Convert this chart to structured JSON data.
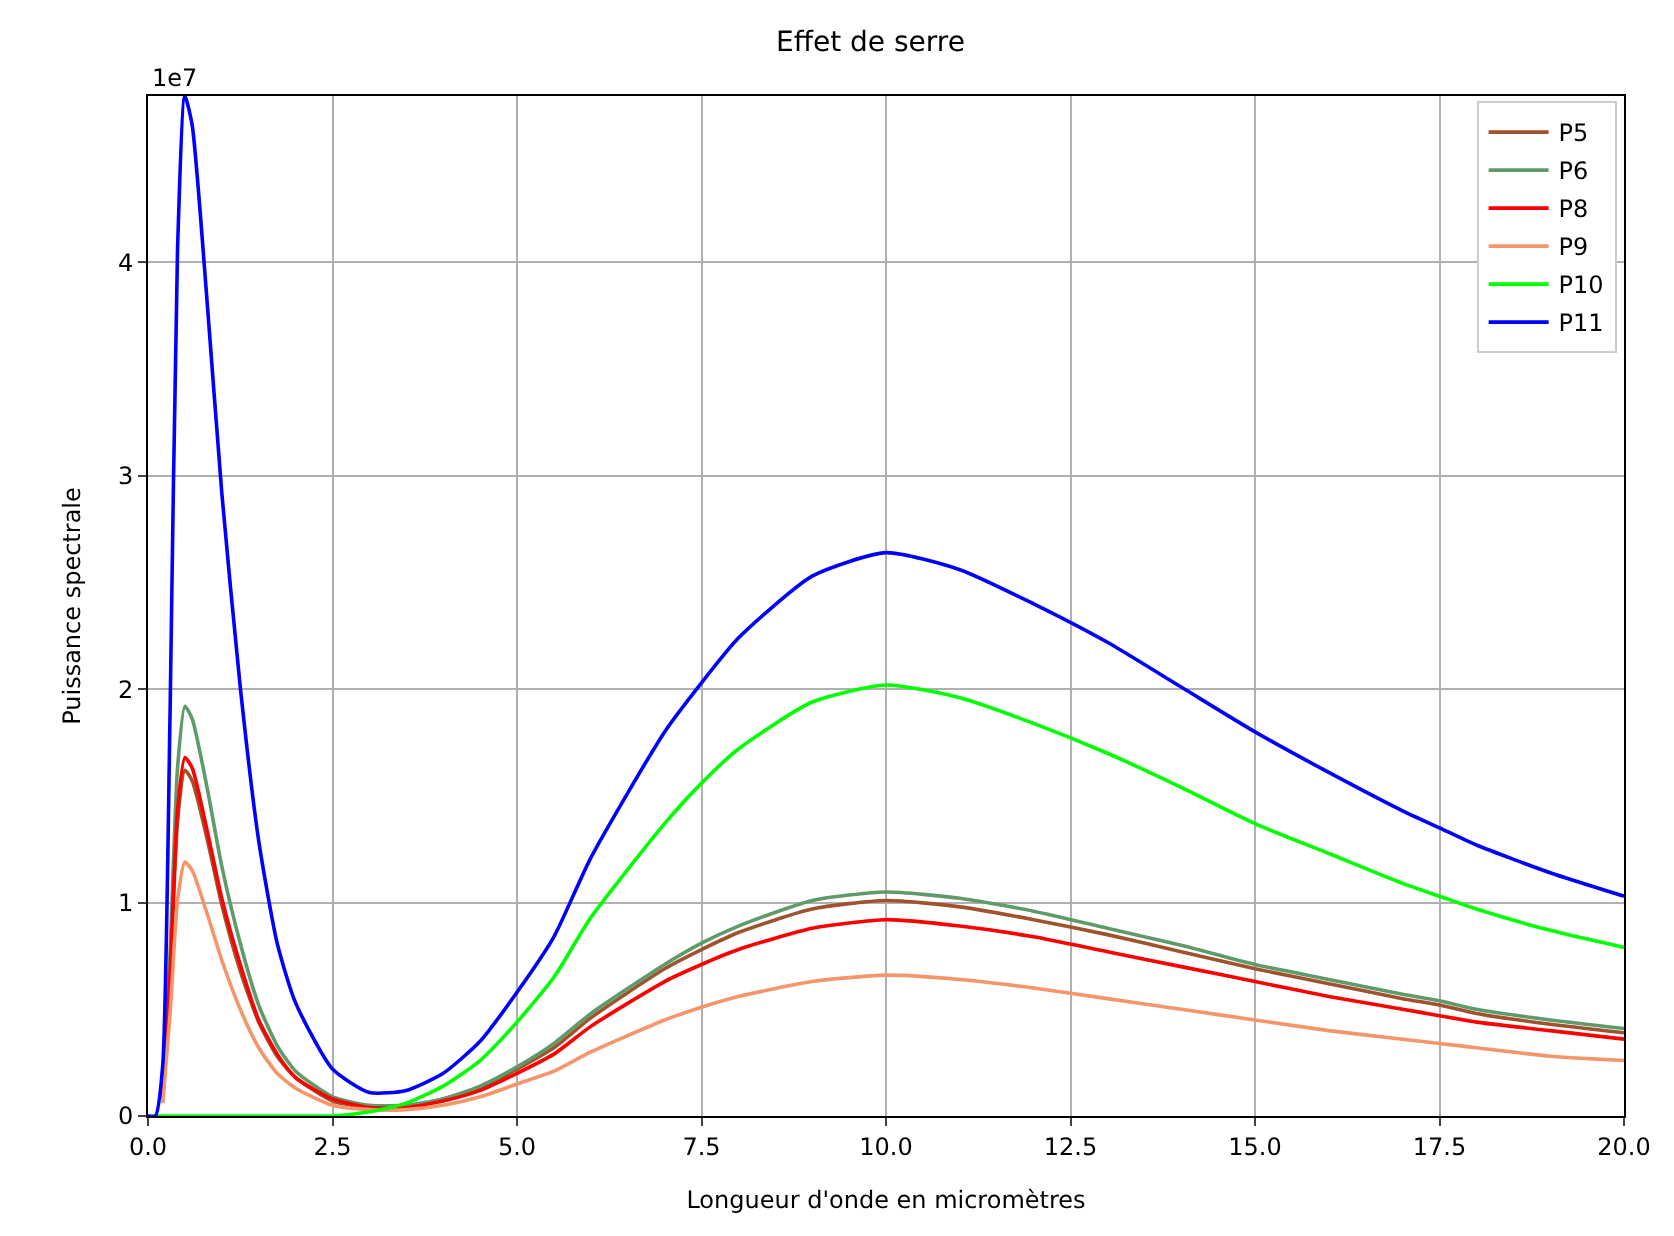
{
  "chart_data": {
    "type": "line",
    "title": "Effet de serre",
    "xlabel": "Longueur d'onde en micromètres",
    "ylabel": "Puissance spectrale",
    "annotations": [
      "1e7"
    ],
    "x": [
      0,
      0.1,
      0.2,
      0.3,
      0.4,
      0.5,
      0.6,
      0.8,
      1,
      1.25,
      1.5,
      1.75,
      2,
      2.5,
      3,
      3.5,
      4,
      4.5,
      5,
      5.5,
      6,
      7,
      7.5,
      8,
      9,
      10,
      11,
      12,
      13,
      14,
      15,
      16,
      17,
      17.5,
      18,
      19,
      20
    ],
    "series": [
      {
        "name": "P5",
        "color": "#a0522d",
        "values": [
          null,
          null,
          0.08,
          0.65,
          1.38,
          1.62,
          1.57,
          1.3,
          0.99,
          0.68,
          0.44,
          0.28,
          0.18,
          0.07,
          0.04,
          0.04,
          0.08,
          0.13,
          0.22,
          0.32,
          0.46,
          0.69,
          0.78,
          0.86,
          0.97,
          1.01,
          0.98,
          0.92,
          0.85,
          0.77,
          0.69,
          0.62,
          0.55,
          0.52,
          0.48,
          0.43,
          0.39
        ]
      },
      {
        "name": "P6",
        "color": "#5f9a6a",
        "values": [
          null,
          null,
          0.1,
          0.77,
          1.63,
          1.92,
          1.86,
          1.54,
          1.17,
          0.81,
          0.52,
          0.33,
          0.21,
          0.09,
          0.05,
          0.05,
          0.08,
          0.14,
          0.23,
          0.34,
          0.48,
          0.71,
          0.81,
          0.89,
          1.01,
          1.05,
          1.02,
          0.96,
          0.88,
          0.8,
          0.71,
          0.64,
          0.57,
          0.54,
          0.5,
          0.45,
          0.41
        ]
      },
      {
        "name": "P8",
        "color": "#ff0000",
        "values": [
          null,
          null,
          0.08,
          0.67,
          1.43,
          1.68,
          1.63,
          1.34,
          1.02,
          0.71,
          0.45,
          0.29,
          0.18,
          0.08,
          0.04,
          0.04,
          0.07,
          0.12,
          0.2,
          0.29,
          0.42,
          0.63,
          0.71,
          0.78,
          0.88,
          0.92,
          0.89,
          0.84,
          0.77,
          0.7,
          0.63,
          0.56,
          0.5,
          0.47,
          0.44,
          0.4,
          0.36
        ]
      },
      {
        "name": "P9",
        "color": "#f4956a",
        "values": [
          null,
          null,
          0.06,
          0.48,
          1.01,
          1.19,
          1.15,
          0.95,
          0.73,
          0.5,
          0.32,
          0.2,
          0.13,
          0.05,
          0.03,
          0.03,
          0.05,
          0.09,
          0.15,
          0.21,
          0.3,
          0.45,
          0.51,
          0.56,
          0.63,
          0.66,
          0.64,
          0.6,
          0.55,
          0.5,
          0.45,
          0.4,
          0.36,
          0.34,
          0.32,
          0.28,
          0.26
        ]
      },
      {
        "name": "P10",
        "color": "#00ff00",
        "values": [
          0,
          0,
          0,
          0,
          0,
          0,
          0,
          0,
          0,
          0,
          0,
          0,
          0,
          0,
          0.02,
          0.06,
          0.14,
          0.26,
          0.44,
          0.65,
          0.93,
          1.37,
          1.56,
          1.72,
          1.94,
          2.02,
          1.96,
          1.84,
          1.7,
          1.54,
          1.37,
          1.23,
          1.09,
          1.03,
          0.97,
          0.87,
          0.79
        ]
      },
      {
        "name": "P11",
        "color": "#0000ff",
        "values": [
          0,
          0,
          0.24,
          1.91,
          4.06,
          4.78,
          4.64,
          3.82,
          2.92,
          2.01,
          1.29,
          0.81,
          0.53,
          0.22,
          0.11,
          0.12,
          0.2,
          0.35,
          0.58,
          0.84,
          1.21,
          1.8,
          2.03,
          2.24,
          2.53,
          2.64,
          2.56,
          2.4,
          2.22,
          2.01,
          1.8,
          1.61,
          1.43,
          1.35,
          1.27,
          1.14,
          1.03
        ]
      }
    ],
    "xlim": [
      0,
      20
    ],
    "xticks": [
      {
        "value": 0,
        "label": "0.0"
      },
      {
        "value": 2.5,
        "label": "2.5"
      },
      {
        "value": 5,
        "label": "5.0"
      },
      {
        "value": 7.5,
        "label": "7.5"
      },
      {
        "value": 10,
        "label": "10.0"
      },
      {
        "value": 12.5,
        "label": "12.5"
      },
      {
        "value": 15,
        "label": "15.0"
      },
      {
        "value": 17.5,
        "label": "17.5"
      },
      {
        "value": 20,
        "label": "20.0"
      }
    ],
    "ylim": [
      0,
      4.78
    ],
    "yticks": [
      0,
      1,
      2,
      3,
      4
    ],
    "grid": true,
    "legend": "top right",
    "line_style": "solid",
    "marker": "none"
  }
}
